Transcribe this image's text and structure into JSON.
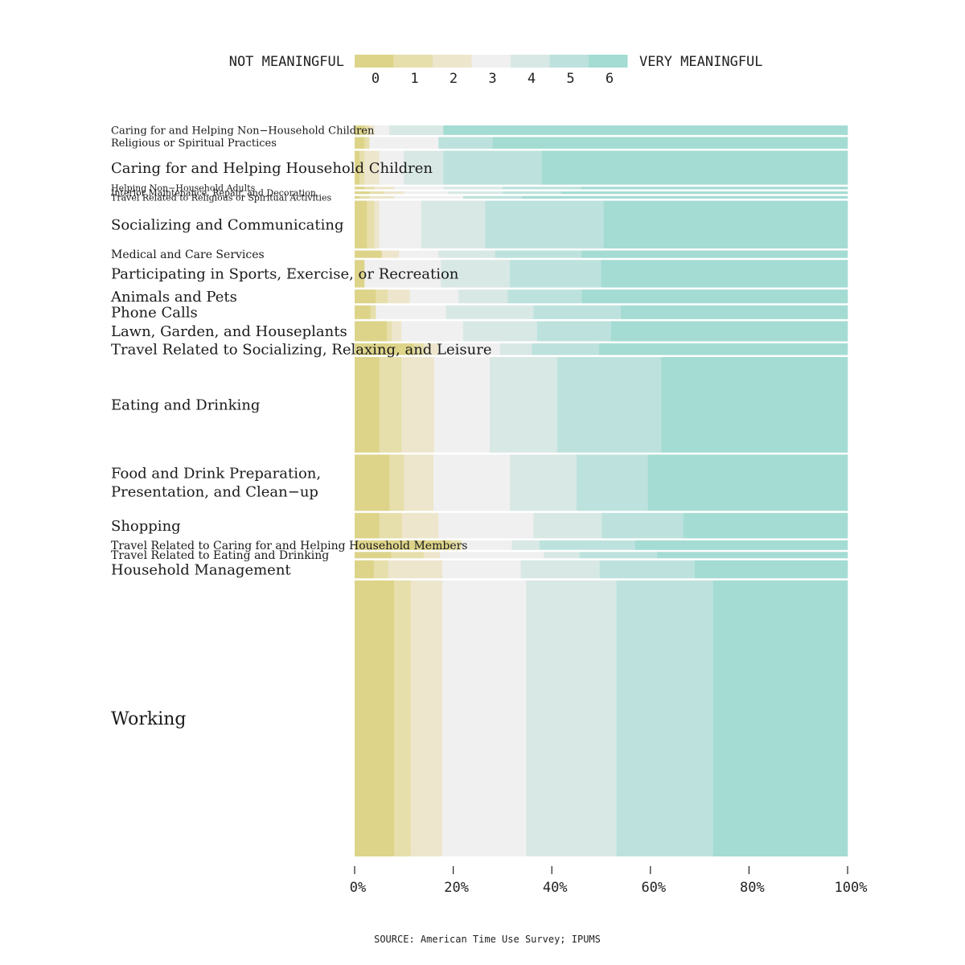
{
  "chart_data": {
    "type": "bar",
    "orientation": "horizontal",
    "stacked": "percent",
    "bar_height_encodes": "share of time spent",
    "legend": {
      "left_label": "NOT MEANINGFUL",
      "right_label": "VERY MEANINGFUL",
      "levels": [
        "0",
        "1",
        "2",
        "3",
        "4",
        "5",
        "6"
      ],
      "colors": [
        "#ddd48a",
        "#e6dfab",
        "#ede6cd",
        "#f0f0f0",
        "#d8e8e5",
        "#bde2dd",
        "#a4dcd3"
      ]
    },
    "x_ticks": [
      "0%",
      "20%",
      "40%",
      "60%",
      "80%",
      "100%"
    ],
    "xlim": [
      0,
      100
    ],
    "grid": false,
    "source": "SOURCE: American Time Use Survey; IPUMS",
    "rows": [
      {
        "label": "Caring for and Helping Non−Household Children",
        "weight": 0.9,
        "font": 13,
        "values": [
          2,
          1,
          1,
          3,
          11,
          0,
          82
        ]
      },
      {
        "label": "Religious or Spiritual Practices",
        "weight": 1.1,
        "font": 13,
        "values": [
          2,
          1,
          0,
          14,
          0,
          11,
          72
        ]
      },
      {
        "label": "Caring for and Helping Household Children",
        "weight": 3.2,
        "font": 18,
        "values": [
          1,
          1,
          3,
          5,
          8,
          20,
          62
        ]
      },
      {
        "label": "Helping Non−Household Adults",
        "weight": 0.25,
        "font": 11,
        "values": [
          2,
          2,
          4,
          10,
          12,
          16,
          54
        ]
      },
      {
        "label": "Interior Maintenance, Repair, and Decoration",
        "weight": 0.25,
        "font": 11,
        "values": [
          3,
          3,
          4,
          9,
          11,
          12,
          58
        ]
      },
      {
        "label": "Travel Related to Religious or Spiritual Activities",
        "weight": 0.25,
        "font": 11,
        "values": [
          1,
          2,
          5,
          14,
          0,
          12,
          66
        ]
      },
      {
        "label": "Socializing and Communicating",
        "weight": 4.5,
        "font": 18,
        "values": [
          2.5,
          1.5,
          1,
          8.5,
          13,
          24,
          49.5
        ]
      },
      {
        "label": "Medical and Care Services",
        "weight": 0.7,
        "font": 14,
        "values": [
          5.5,
          0,
          3.5,
          8,
          11.5,
          17.5,
          54
        ]
      },
      {
        "label": "Participating in Sports, Exercise, or Recreation",
        "weight": 2.6,
        "font": 18,
        "values": [
          2,
          0,
          0,
          15.5,
          14,
          18.5,
          50
        ]
      },
      {
        "label": "Animals and Pets",
        "weight": 1.3,
        "font": 18,
        "values": [
          4.3,
          2.4,
          4.5,
          9.9,
          10,
          15,
          54
        ]
      },
      {
        "label": "Phone Calls",
        "weight": 1.3,
        "font": 18,
        "values": [
          3.2,
          1.1,
          0,
          14.2,
          17.8,
          17.7,
          46
        ]
      },
      {
        "label": "Lawn, Garden, and Houseplants",
        "weight": 1.9,
        "font": 18,
        "values": [
          6.5,
          1,
          2,
          12.5,
          15,
          15,
          48
        ]
      },
      {
        "label": "Travel Related to Socializing, Relaxing, and Leisure",
        "weight": 1.1,
        "font": 18,
        "values": [
          12,
          2,
          3,
          12.5,
          6.5,
          13.6,
          50.4
        ]
      },
      {
        "label": "Eating and Drinking",
        "weight": 9.0,
        "font": 18,
        "values": [
          5,
          4.5,
          6.6,
          11.3,
          13.7,
          21.1,
          37.8
        ]
      },
      {
        "label": "Food and Drink Preparation, Presentation, and Clean−up",
        "weight": 5.3,
        "font": 18,
        "values": [
          7.1,
          2.9,
          6,
          15.5,
          13.5,
          14.5,
          40.5
        ]
      },
      {
        "label": "Shopping",
        "weight": 2.4,
        "font": 18,
        "values": [
          5,
          4.6,
          7.4,
          19.3,
          13.8,
          16.6,
          33.3
        ]
      },
      {
        "label": "Travel Related to Caring for and Helping Household Members",
        "weight": 0.9,
        "font": 14,
        "values": [
          19.5,
          2.2,
          0,
          10.2,
          5.6,
          19.4,
          43.1
        ]
      },
      {
        "label": "Travel Related to Eating and Drinking",
        "weight": 0.6,
        "font": 14,
        "values": [
          7.4,
          6.6,
          3.3,
          21.1,
          7.2,
          15.8,
          38.6
        ]
      },
      {
        "label": "Household Management",
        "weight": 1.7,
        "font": 18,
        "values": [
          3.9,
          2.9,
          11,
          15.9,
          16,
          19.3,
          31
        ]
      },
      {
        "label": "Working",
        "weight": 26.0,
        "font": 22,
        "values": [
          8,
          3.4,
          6.4,
          17,
          18.3,
          19.6,
          27.3
        ]
      }
    ]
  }
}
